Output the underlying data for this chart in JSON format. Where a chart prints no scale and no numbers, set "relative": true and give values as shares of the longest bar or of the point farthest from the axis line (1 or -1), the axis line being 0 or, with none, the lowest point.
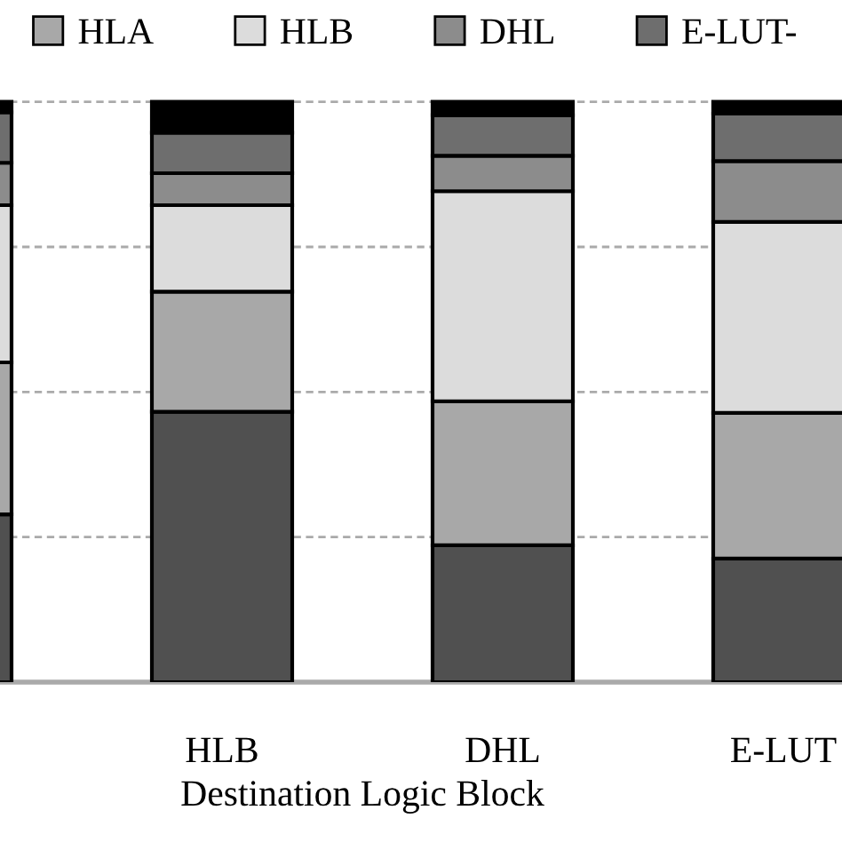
{
  "chart_data": {
    "type": "bar",
    "stacked": true,
    "relative": true,
    "xlabel": "Destination Logic Block",
    "categories": [
      null,
      "HLB",
      "DHL",
      "E-LUT"
    ],
    "series": [
      {
        "color": "#505050",
        "values": [
          0.289,
          0.466,
          0.236,
          0.213
        ]
      },
      {
        "name": "HLA",
        "color": "#a8a8a8",
        "values": [
          0.262,
          0.207,
          0.248,
          0.251
        ]
      },
      {
        "name": "HLB",
        "color": "#dcdcdc",
        "values": [
          0.271,
          0.149,
          0.362,
          0.329
        ]
      },
      {
        "name": "DHL",
        "color": "#8c8c8c",
        "values": [
          0.073,
          0.055,
          0.061,
          0.105
        ]
      },
      {
        "name": "E-LUT-",
        "color": "#6e6e6e",
        "values": [
          0.087,
          0.07,
          0.07,
          0.082
        ]
      },
      {
        "color": "#000000",
        "values": [
          0.018,
          0.053,
          0.023,
          0.02
        ]
      }
    ],
    "grid": "y",
    "legend": "top"
  }
}
